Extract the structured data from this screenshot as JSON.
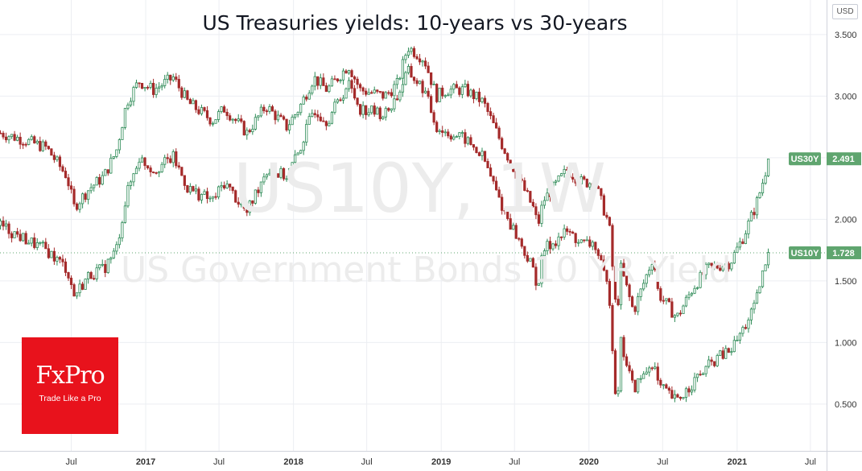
{
  "title": "US Treasuries yields: 10-years vs 30-years",
  "watermark": {
    "symbol": "US10Y, 1W",
    "description": "US Government Bonds 10 YR Yield"
  },
  "currency_button": "USD",
  "logo": {
    "name": "FxPro",
    "tagline": "Trade Like a Pro",
    "color": "#e8121c"
  },
  "colors": {
    "up": "#2e8b57",
    "down": "#a52a2a",
    "label_bg": "#5fa56f",
    "grid": "#eceef2",
    "dotted_line": "#5fa56f"
  },
  "chart_data": {
    "type": "line",
    "render_as": "candlestick",
    "timeframe": "1W",
    "x_ticks": [
      "Jul",
      "2017",
      "Jul",
      "2018",
      "Jul",
      "2019",
      "Jul",
      "2020",
      "Jul",
      "2021",
      "Jul"
    ],
    "x_tick_dates": [
      "2016-07-01",
      "2017-01-01",
      "2017-07-01",
      "2018-01-01",
      "2018-07-01",
      "2019-01-01",
      "2019-07-01",
      "2020-01-01",
      "2020-07-01",
      "2021-01-01",
      "2021-07-01"
    ],
    "y_ticks": [
      "3.500",
      "3.000",
      "2.500",
      "2.000",
      "1.500",
      "1.000",
      "0.500"
    ],
    "ylim": [
      0.12,
      3.78
    ],
    "xlim": [
      "2016-01-07",
      "2021-08-10"
    ],
    "grid": true,
    "series": [
      {
        "name": "US30Y",
        "last_value": "2.491",
        "points": [
          [
            "2016-01-08",
            2.7
          ],
          [
            "2016-03-01",
            2.65
          ],
          [
            "2016-05-01",
            2.58
          ],
          [
            "2016-06-20",
            2.35
          ],
          [
            "2016-07-08",
            2.1
          ],
          [
            "2016-08-15",
            2.25
          ],
          [
            "2016-09-20",
            2.35
          ],
          [
            "2016-10-20",
            2.55
          ],
          [
            "2016-11-15",
            2.95
          ],
          [
            "2016-12-15",
            3.12
          ],
          [
            "2017-01-20",
            3.05
          ],
          [
            "2017-03-10",
            3.15
          ],
          [
            "2017-04-15",
            2.95
          ],
          [
            "2017-06-15",
            2.8
          ],
          [
            "2017-07-15",
            2.9
          ],
          [
            "2017-09-08",
            2.7
          ],
          [
            "2017-10-25",
            2.92
          ],
          [
            "2017-12-15",
            2.75
          ],
          [
            "2018-01-15",
            2.9
          ],
          [
            "2018-02-20",
            3.15
          ],
          [
            "2018-03-25",
            3.05
          ],
          [
            "2018-05-17",
            3.25
          ],
          [
            "2018-06-15",
            3.05
          ],
          [
            "2018-08-15",
            3.0
          ],
          [
            "2018-09-15",
            3.1
          ],
          [
            "2018-10-10",
            3.4
          ],
          [
            "2018-11-20",
            3.3
          ],
          [
            "2018-12-20",
            3.0
          ],
          [
            "2019-01-15",
            3.05
          ],
          [
            "2019-03-01",
            3.05
          ],
          [
            "2019-04-15",
            2.95
          ],
          [
            "2019-06-01",
            2.6
          ],
          [
            "2019-08-15",
            2.1
          ],
          [
            "2019-08-28",
            1.95
          ],
          [
            "2019-09-10",
            2.15
          ],
          [
            "2019-11-08",
            2.4
          ],
          [
            "2019-12-15",
            2.3
          ],
          [
            "2020-01-15",
            2.3
          ],
          [
            "2020-02-20",
            1.95
          ],
          [
            "2020-03-09",
            1.2
          ],
          [
            "2020-03-20",
            1.6
          ],
          [
            "2020-04-20",
            1.25
          ],
          [
            "2020-06-08",
            1.7
          ],
          [
            "2020-06-20",
            1.4
          ],
          [
            "2020-08-05",
            1.2
          ],
          [
            "2020-09-15",
            1.45
          ],
          [
            "2020-10-20",
            1.6
          ],
          [
            "2020-11-15",
            1.62
          ],
          [
            "2020-12-15",
            1.65
          ],
          [
            "2021-01-15",
            1.85
          ],
          [
            "2021-02-15",
            2.1
          ],
          [
            "2021-03-01",
            2.25
          ],
          [
            "2021-03-20",
            2.49
          ]
        ]
      },
      {
        "name": "US10Y",
        "last_value": "1.728",
        "points": [
          [
            "2016-01-08",
            1.95
          ],
          [
            "2016-03-01",
            1.85
          ],
          [
            "2016-05-01",
            1.75
          ],
          [
            "2016-06-20",
            1.6
          ],
          [
            "2016-07-08",
            1.38
          ],
          [
            "2016-08-15",
            1.55
          ],
          [
            "2016-09-20",
            1.6
          ],
          [
            "2016-10-20",
            1.75
          ],
          [
            "2016-11-15",
            2.2
          ],
          [
            "2016-12-15",
            2.5
          ],
          [
            "2017-01-20",
            2.4
          ],
          [
            "2017-03-10",
            2.5
          ],
          [
            "2017-04-15",
            2.25
          ],
          [
            "2017-06-15",
            2.15
          ],
          [
            "2017-07-15",
            2.3
          ],
          [
            "2017-09-08",
            2.05
          ],
          [
            "2017-10-25",
            2.4
          ],
          [
            "2017-12-15",
            2.35
          ],
          [
            "2018-01-15",
            2.55
          ],
          [
            "2018-02-20",
            2.9
          ],
          [
            "2018-03-25",
            2.8
          ],
          [
            "2018-05-17",
            3.1
          ],
          [
            "2018-06-15",
            2.9
          ],
          [
            "2018-08-15",
            2.85
          ],
          [
            "2018-09-15",
            3.0
          ],
          [
            "2018-10-10",
            3.2
          ],
          [
            "2018-11-20",
            3.05
          ],
          [
            "2018-12-20",
            2.75
          ],
          [
            "2019-01-15",
            2.7
          ],
          [
            "2019-03-01",
            2.65
          ],
          [
            "2019-04-15",
            2.5
          ],
          [
            "2019-06-01",
            2.1
          ],
          [
            "2019-08-15",
            1.6
          ],
          [
            "2019-08-28",
            1.45
          ],
          [
            "2019-09-10",
            1.75
          ],
          [
            "2019-11-08",
            1.9
          ],
          [
            "2019-12-15",
            1.8
          ],
          [
            "2020-01-15",
            1.8
          ],
          [
            "2020-02-20",
            1.4
          ],
          [
            "2020-03-09",
            0.45
          ],
          [
            "2020-03-20",
            1.0
          ],
          [
            "2020-04-20",
            0.62
          ],
          [
            "2020-06-08",
            0.85
          ],
          [
            "2020-06-20",
            0.65
          ],
          [
            "2020-08-05",
            0.52
          ],
          [
            "2020-09-15",
            0.68
          ],
          [
            "2020-10-20",
            0.8
          ],
          [
            "2020-11-15",
            0.88
          ],
          [
            "2020-12-15",
            0.93
          ],
          [
            "2021-01-15",
            1.1
          ],
          [
            "2021-02-15",
            1.3
          ],
          [
            "2021-03-01",
            1.5
          ],
          [
            "2021-03-20",
            1.73
          ]
        ]
      }
    ]
  }
}
